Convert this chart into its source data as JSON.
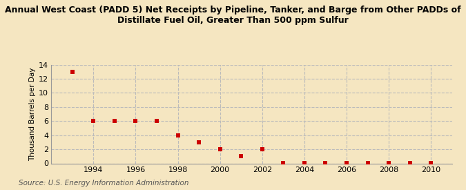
{
  "title_line1": "Annual West Coast (PADD 5) Net Receipts by Pipeline, Tanker, and Barge from Other PADDs of",
  "title_line2": "Distillate Fuel Oil, Greater Than 500 ppm Sulfur",
  "ylabel": "Thousand Barrels per Day",
  "source": "Source: U.S. Energy Information Administration",
  "background_color": "#f5e6c1",
  "plot_bg_color": "#f5e6c1",
  "marker_color": "#cc0000",
  "years": [
    1993,
    1994,
    1995,
    1996,
    1997,
    1998,
    1999,
    2000,
    2001,
    2002,
    2003,
    2004,
    2005,
    2006,
    2007,
    2008,
    2009,
    2010
  ],
  "values": [
    13.0,
    6.0,
    6.0,
    6.0,
    6.0,
    4.0,
    3.0,
    2.0,
    1.0,
    2.0,
    0.04,
    0.04,
    0.04,
    0.04,
    0.04,
    0.04,
    0.04,
    0.04
  ],
  "xlim": [
    1992.0,
    2011.0
  ],
  "ylim": [
    0,
    14
  ],
  "yticks": [
    0,
    2,
    4,
    6,
    8,
    10,
    12,
    14
  ],
  "xticks": [
    1994,
    1996,
    1998,
    2000,
    2002,
    2004,
    2006,
    2008,
    2010
  ],
  "grid_color": "#bbbbbb",
  "title_fontsize": 9.0,
  "label_fontsize": 7.5,
  "tick_fontsize": 8.0,
  "source_fontsize": 7.5
}
